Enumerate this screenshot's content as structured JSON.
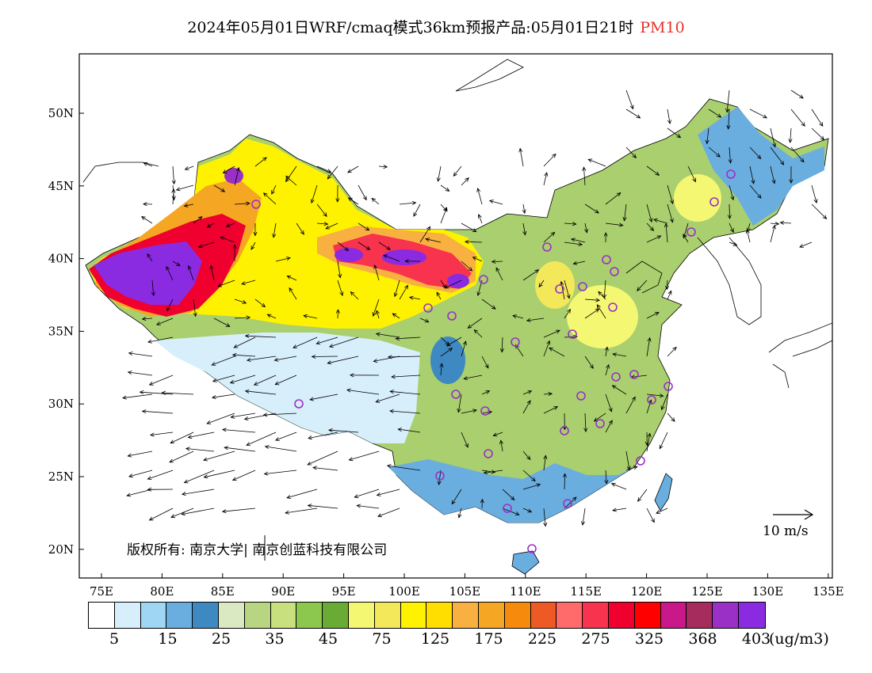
{
  "title": {
    "main": "2024年05月01日WRF/cmaq模式36km预报产品:05月01日21时",
    "pollutant": "PM10",
    "pollutant_color": "#e8302a"
  },
  "axes": {
    "x_ticks": [
      "75E",
      "80E",
      "85E",
      "90E",
      "95E",
      "100E",
      "105E",
      "110E",
      "115E",
      "120E",
      "125E",
      "130E",
      "135E"
    ],
    "y_ticks": [
      "50N",
      "45N",
      "40N",
      "35N",
      "30N",
      "25N",
      "20N"
    ]
  },
  "colorbar": {
    "colors": [
      "#ffffff",
      "#d6effb",
      "#9fd6f3",
      "#6aaee0",
      "#3f89c3",
      "#dbe9c2",
      "#b8d681",
      "#c8e07e",
      "#8cc84e",
      "#6aab36",
      "#f4f772",
      "#f3e85a",
      "#fff200",
      "#ffde00",
      "#f8b040",
      "#f5a623",
      "#f58a0c",
      "#ee5a26",
      "#ff6b6b",
      "#f7334e",
      "#f0002e",
      "#ff0000",
      "#c8188a",
      "#a52c5d",
      "#9b30c6",
      "#8a2be2"
    ],
    "labels": [
      "5",
      "15",
      "25",
      "35",
      "45",
      "75",
      "125",
      "175",
      "225",
      "275",
      "325",
      "368",
      "403"
    ],
    "unit": "(ug/m3)"
  },
  "wind_scale": {
    "label": "10 m/s"
  },
  "copyright": "版权所有: 南京大学| 南京创蓝科技有限公司",
  "city_markers_color": "#9b30c6"
}
